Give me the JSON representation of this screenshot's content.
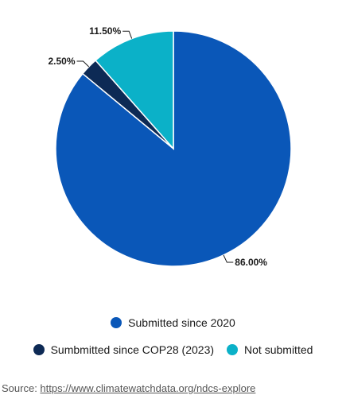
{
  "colors": {
    "submitted_2020": "#0a57b8",
    "submitted_cop28": "#0d2a55",
    "not_submitted": "#0bb1c8"
  },
  "chart_data": {
    "type": "pie",
    "title": "",
    "slices": [
      {
        "name": "Submitted since 2020",
        "value": 86.0,
        "label": "86.00%",
        "color": "#0a57b8"
      },
      {
        "name": "Sumbmitted since COP28 (2023)",
        "value": 2.5,
        "label": "2.50%",
        "color": "#0d2a55"
      },
      {
        "name": "Not submitted",
        "value": 11.5,
        "label": "11.50%",
        "color": "#0bb1c8"
      }
    ],
    "legend": "bottom"
  },
  "legend": {
    "item1": "Submitted since 2020",
    "item2": "Sumbmitted since COP28 (2023)",
    "item3": "Not submitted"
  },
  "source": {
    "prefix": "Source: ",
    "url_text": "https://www.climatewatchdata.org/ndcs-explore"
  }
}
